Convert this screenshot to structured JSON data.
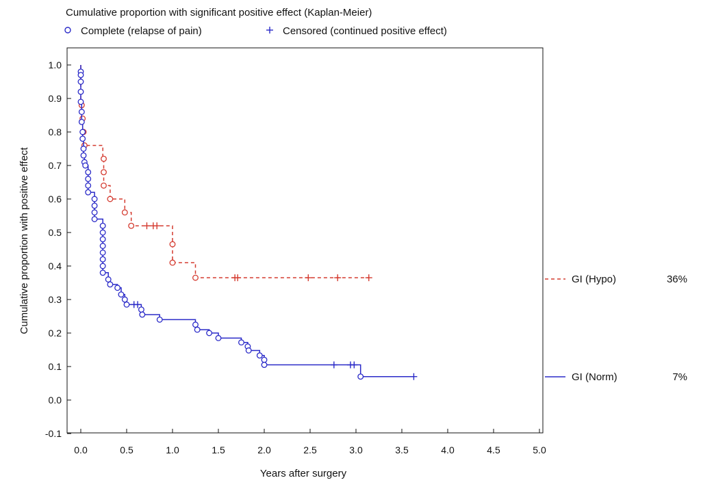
{
  "chart_data": {
    "type": "line",
    "title": "Cumulative proportion with significant positive effect (Kaplan-Meier)",
    "xlabel": "Years after surgery",
    "ylabel": "Cumulative proportion with positive effect",
    "xlim": [
      0,
      5
    ],
    "ylim": [
      -0.1,
      1.05
    ],
    "x_ticks": [
      "0.0",
      "0.5",
      "1.0",
      "1.5",
      "2.0",
      "2.5",
      "3.0",
      "3.5",
      "4.0",
      "4.5",
      "5.0"
    ],
    "y_ticks": [
      "1.0",
      "0.9",
      "0.8",
      "0.7",
      "0.6",
      "0.5",
      "0.4",
      "0.3",
      "0.2",
      "0.1",
      "0.0",
      "-0.1"
    ],
    "x_tick_values": [
      0,
      0.5,
      1.0,
      1.5,
      2.0,
      2.5,
      3.0,
      3.5,
      4.0,
      4.5,
      5.0
    ],
    "y_tick_values": [
      1.0,
      0.9,
      0.8,
      0.7,
      0.6,
      0.5,
      0.4,
      0.3,
      0.2,
      0.1,
      0.0,
      -0.1
    ],
    "grid": false,
    "legend": {
      "placement": "top",
      "items": [
        {
          "marker": "circle",
          "label": "Complete (relapse of pain)"
        },
        {
          "marker": "plus",
          "label": "Censored (continued positive effect)"
        }
      ]
    },
    "series": [
      {
        "name": "GI (Hypo)",
        "end_label": "36%",
        "color": "#d43a2f",
        "style": "dashed",
        "steps": [
          [
            0,
            1.0
          ],
          [
            0,
            0.88
          ],
          [
            0.01,
            0.88
          ],
          [
            0.01,
            0.84
          ],
          [
            0.02,
            0.84
          ],
          [
            0.02,
            0.8
          ],
          [
            0.03,
            0.8
          ],
          [
            0.03,
            0.76
          ],
          [
            0.24,
            0.76
          ],
          [
            0.24,
            0.72
          ],
          [
            0.25,
            0.72
          ],
          [
            0.25,
            0.68
          ],
          [
            0.25,
            0.64
          ],
          [
            0.32,
            0.64
          ],
          [
            0.32,
            0.6
          ],
          [
            0.48,
            0.6
          ],
          [
            0.48,
            0.56
          ],
          [
            0.55,
            0.56
          ],
          [
            0.55,
            0.52
          ],
          [
            1.0,
            0.52
          ],
          [
            1.0,
            0.465
          ],
          [
            1.0,
            0.41
          ],
          [
            1.25,
            0.41
          ],
          [
            1.25,
            0.365
          ],
          [
            3.14,
            0.365
          ]
        ],
        "events": [
          [
            0.01,
            0.88
          ],
          [
            0.02,
            0.84
          ],
          [
            0.03,
            0.8
          ],
          [
            0.04,
            0.76
          ],
          [
            0.25,
            0.72
          ],
          [
            0.25,
            0.68
          ],
          [
            0.25,
            0.64
          ],
          [
            0.32,
            0.6
          ],
          [
            0.48,
            0.56
          ],
          [
            0.55,
            0.52
          ],
          [
            1.0,
            0.465
          ],
          [
            1.0,
            0.41
          ],
          [
            1.25,
            0.365
          ]
        ],
        "censored": [
          [
            0.72,
            0.52
          ],
          [
            0.79,
            0.52
          ],
          [
            0.83,
            0.52
          ],
          [
            1.68,
            0.365
          ],
          [
            1.71,
            0.365
          ],
          [
            2.48,
            0.365
          ],
          [
            2.8,
            0.365
          ],
          [
            3.14,
            0.365
          ]
        ]
      },
      {
        "name": "GI (Norm)",
        "end_label": "7%",
        "color": "#2a2ac8",
        "style": "solid",
        "steps": [
          [
            0,
            1.0
          ],
          [
            0,
            0.98
          ],
          [
            0,
            0.97
          ],
          [
            0,
            0.95
          ],
          [
            0,
            0.92
          ],
          [
            0,
            0.89
          ],
          [
            0.01,
            0.89
          ],
          [
            0.01,
            0.86
          ],
          [
            0.01,
            0.83
          ],
          [
            0.02,
            0.83
          ],
          [
            0.02,
            0.8
          ],
          [
            0.02,
            0.78
          ],
          [
            0.03,
            0.78
          ],
          [
            0.03,
            0.75
          ],
          [
            0.03,
            0.73
          ],
          [
            0.04,
            0.73
          ],
          [
            0.04,
            0.71
          ],
          [
            0.05,
            0.71
          ],
          [
            0.05,
            0.7
          ],
          [
            0.08,
            0.7
          ],
          [
            0.08,
            0.68
          ],
          [
            0.08,
            0.66
          ],
          [
            0.08,
            0.64
          ],
          [
            0.08,
            0.62
          ],
          [
            0.15,
            0.62
          ],
          [
            0.15,
            0.6
          ],
          [
            0.15,
            0.58
          ],
          [
            0.15,
            0.56
          ],
          [
            0.15,
            0.54
          ],
          [
            0.24,
            0.54
          ],
          [
            0.24,
            0.52
          ],
          [
            0.24,
            0.5
          ],
          [
            0.24,
            0.48
          ],
          [
            0.24,
            0.46
          ],
          [
            0.24,
            0.44
          ],
          [
            0.24,
            0.42
          ],
          [
            0.24,
            0.4
          ],
          [
            0.24,
            0.38
          ],
          [
            0.3,
            0.38
          ],
          [
            0.3,
            0.36
          ],
          [
            0.32,
            0.36
          ],
          [
            0.32,
            0.345
          ],
          [
            0.4,
            0.345
          ],
          [
            0.4,
            0.335
          ],
          [
            0.44,
            0.335
          ],
          [
            0.44,
            0.315
          ],
          [
            0.48,
            0.315
          ],
          [
            0.48,
            0.3
          ],
          [
            0.5,
            0.3
          ],
          [
            0.5,
            0.285
          ],
          [
            0.66,
            0.285
          ],
          [
            0.66,
            0.27
          ],
          [
            0.67,
            0.27
          ],
          [
            0.67,
            0.255
          ],
          [
            0.86,
            0.255
          ],
          [
            0.86,
            0.24
          ],
          [
            1.25,
            0.24
          ],
          [
            1.25,
            0.225
          ],
          [
            1.27,
            0.225
          ],
          [
            1.27,
            0.21
          ],
          [
            1.4,
            0.21
          ],
          [
            1.4,
            0.2
          ],
          [
            1.5,
            0.2
          ],
          [
            1.5,
            0.185
          ],
          [
            1.75,
            0.185
          ],
          [
            1.75,
            0.172
          ],
          [
            1.82,
            0.172
          ],
          [
            1.82,
            0.16
          ],
          [
            1.83,
            0.16
          ],
          [
            1.83,
            0.148
          ],
          [
            1.95,
            0.148
          ],
          [
            1.95,
            0.133
          ],
          [
            2.0,
            0.133
          ],
          [
            2.0,
            0.12
          ],
          [
            2.0,
            0.105
          ],
          [
            3.05,
            0.105
          ],
          [
            3.05,
            0.07
          ],
          [
            3.63,
            0.07
          ]
        ],
        "events": [
          [
            0,
            0.98
          ],
          [
            0,
            0.97
          ],
          [
            0,
            0.95
          ],
          [
            0,
            0.92
          ],
          [
            0,
            0.89
          ],
          [
            0.01,
            0.86
          ],
          [
            0.01,
            0.83
          ],
          [
            0.02,
            0.8
          ],
          [
            0.02,
            0.78
          ],
          [
            0.03,
            0.75
          ],
          [
            0.03,
            0.73
          ],
          [
            0.04,
            0.71
          ],
          [
            0.05,
            0.7
          ],
          [
            0.08,
            0.68
          ],
          [
            0.08,
            0.66
          ],
          [
            0.08,
            0.64
          ],
          [
            0.08,
            0.62
          ],
          [
            0.15,
            0.6
          ],
          [
            0.15,
            0.58
          ],
          [
            0.15,
            0.56
          ],
          [
            0.15,
            0.54
          ],
          [
            0.24,
            0.52
          ],
          [
            0.24,
            0.5
          ],
          [
            0.24,
            0.48
          ],
          [
            0.24,
            0.46
          ],
          [
            0.24,
            0.44
          ],
          [
            0.24,
            0.42
          ],
          [
            0.24,
            0.4
          ],
          [
            0.24,
            0.38
          ],
          [
            0.3,
            0.36
          ],
          [
            0.32,
            0.345
          ],
          [
            0.4,
            0.335
          ],
          [
            0.44,
            0.315
          ],
          [
            0.48,
            0.3
          ],
          [
            0.5,
            0.285
          ],
          [
            0.66,
            0.27
          ],
          [
            0.67,
            0.255
          ],
          [
            0.86,
            0.24
          ],
          [
            1.25,
            0.225
          ],
          [
            1.27,
            0.21
          ],
          [
            1.4,
            0.2
          ],
          [
            1.5,
            0.185
          ],
          [
            1.75,
            0.172
          ],
          [
            1.82,
            0.16
          ],
          [
            1.83,
            0.148
          ],
          [
            1.95,
            0.133
          ],
          [
            2.0,
            0.12
          ],
          [
            2.0,
            0.105
          ],
          [
            3.05,
            0.07
          ]
        ],
        "censored": [
          [
            0.58,
            0.285
          ],
          [
            0.62,
            0.285
          ],
          [
            2.76,
            0.105
          ],
          [
            2.94,
            0.105
          ],
          [
            2.98,
            0.105
          ],
          [
            3.63,
            0.07
          ]
        ]
      }
    ]
  }
}
